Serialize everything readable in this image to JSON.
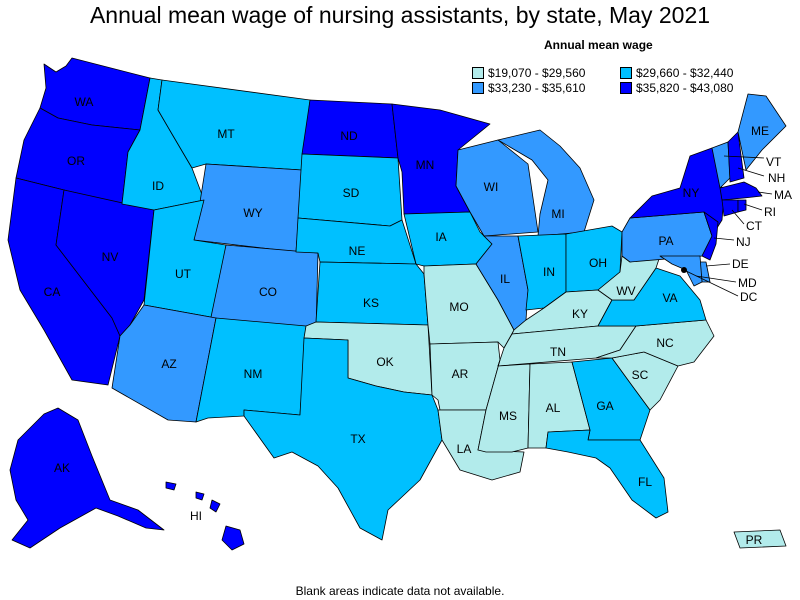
{
  "title": "Annual mean wage of nursing assistants, by state, May 2021",
  "legend": {
    "title": "Annual mean wage",
    "items": [
      {
        "label": "$19,070 - $29,560",
        "color": "#b2ebeb"
      },
      {
        "label": "$29,660 - $32,440",
        "color": "#00c0ff"
      },
      {
        "label": "$33,230 - $35,610",
        "color": "#3399ff"
      },
      {
        "label": "$35,820 - $43,080",
        "color": "#0000ff"
      }
    ]
  },
  "footnote": "Blank areas indicate data not available.",
  "states": {
    "WA": {
      "label": "WA",
      "tier": 3
    },
    "OR": {
      "label": "OR",
      "tier": 3
    },
    "CA": {
      "label": "CA",
      "tier": 3
    },
    "NV": {
      "label": "NV",
      "tier": 3
    },
    "ID": {
      "label": "ID",
      "tier": 1
    },
    "MT": {
      "label": "MT",
      "tier": 1
    },
    "WY": {
      "label": "WY",
      "tier": 2
    },
    "UT": {
      "label": "UT",
      "tier": 1
    },
    "CO": {
      "label": "CO",
      "tier": 2
    },
    "AZ": {
      "label": "AZ",
      "tier": 2
    },
    "NM": {
      "label": "NM",
      "tier": 1
    },
    "ND": {
      "label": "ND",
      "tier": 3
    },
    "SD": {
      "label": "SD",
      "tier": 1
    },
    "NE": {
      "label": "NE",
      "tier": 1
    },
    "KS": {
      "label": "KS",
      "tier": 1
    },
    "OK": {
      "label": "OK",
      "tier": 0
    },
    "TX": {
      "label": "TX",
      "tier": 1
    },
    "MN": {
      "label": "MN",
      "tier": 3
    },
    "IA": {
      "label": "IA",
      "tier": 1
    },
    "MO": {
      "label": "MO",
      "tier": 0
    },
    "AR": {
      "label": "AR",
      "tier": 0
    },
    "LA": {
      "label": "LA",
      "tier": 0
    },
    "WI": {
      "label": "WI",
      "tier": 2
    },
    "IL": {
      "label": "IL",
      "tier": 2
    },
    "MI": {
      "label": "MI",
      "tier": 2
    },
    "IN": {
      "label": "IN",
      "tier": 1
    },
    "OH": {
      "label": "OH",
      "tier": 1
    },
    "KY": {
      "label": "KY",
      "tier": 0
    },
    "TN": {
      "label": "TN",
      "tier": 0
    },
    "MS": {
      "label": "MS",
      "tier": 0
    },
    "AL": {
      "label": "AL",
      "tier": 0
    },
    "GA": {
      "label": "GA",
      "tier": 1
    },
    "FL": {
      "label": "FL",
      "tier": 1
    },
    "SC": {
      "label": "SC",
      "tier": 0
    },
    "NC": {
      "label": "NC",
      "tier": 0
    },
    "VA": {
      "label": "VA",
      "tier": 1
    },
    "WV": {
      "label": "WV",
      "tier": 0
    },
    "PA": {
      "label": "PA",
      "tier": 2
    },
    "NY": {
      "label": "NY",
      "tier": 3
    },
    "ME": {
      "label": "ME",
      "tier": 2
    },
    "VT": {
      "label": "VT",
      "tier": 2
    },
    "NH": {
      "label": "NH",
      "tier": 3
    },
    "MA": {
      "label": "MA",
      "tier": 3
    },
    "RI": {
      "label": "RI",
      "tier": 3
    },
    "CT": {
      "label": "CT",
      "tier": 3
    },
    "NJ": {
      "label": "NJ",
      "tier": 3
    },
    "DE": {
      "label": "DE",
      "tier": 2
    },
    "MD": {
      "label": "MD",
      "tier": 2
    },
    "DC": {
      "label": "DC",
      "tier": 3
    },
    "AK": {
      "label": "AK",
      "tier": 3
    },
    "HI": {
      "label": "HI",
      "tier": 3
    },
    "PR": {
      "label": "PR",
      "tier": 0
    }
  }
}
